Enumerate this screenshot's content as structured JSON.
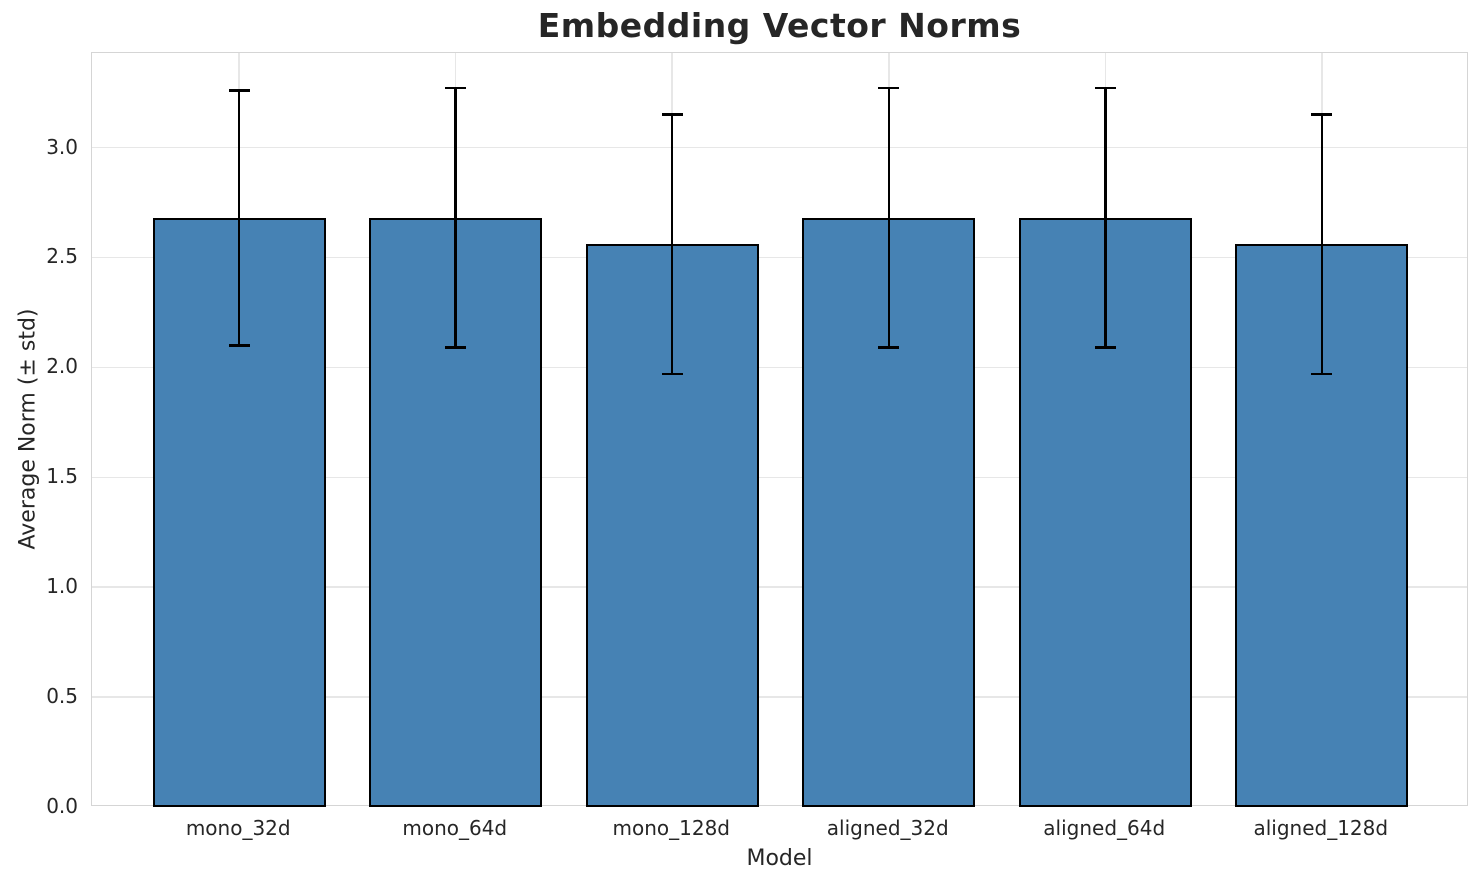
{
  "chart_data": {
    "type": "bar",
    "title": "Embedding Vector Norms",
    "xlabel": "Model",
    "ylabel": "Average Norm (± std)",
    "categories": [
      "mono_32d",
      "mono_64d",
      "mono_128d",
      "aligned_32d",
      "aligned_64d",
      "aligned_128d"
    ],
    "series": [
      {
        "name": "Average Norm",
        "values": [
          2.68,
          2.68,
          2.56,
          2.68,
          2.68,
          2.56
        ],
        "errors": [
          0.58,
          0.59,
          0.59,
          0.59,
          0.59,
          0.59
        ]
      }
    ],
    "ylim": [
      0,
      3.43
    ],
    "yticks": [
      0,
      0.5,
      1,
      1.5,
      2,
      2.5,
      3
    ],
    "ytick_labels": [
      "0.0",
      "0.5",
      "1.0",
      "1.5",
      "2.0",
      "2.5",
      "3.0"
    ],
    "xlim": [
      -0.68,
      5.68
    ],
    "bar_width": 0.8,
    "grid": true,
    "legend": "none",
    "error_caps": true,
    "colors": {
      "bar_fill": "#4682b4",
      "bar_edge": "#000000",
      "error_bar": "#000000",
      "grid_line": "#e7e7e7",
      "spine": "#d5d5d5",
      "text": "#262626",
      "background": "#ffffff"
    }
  }
}
